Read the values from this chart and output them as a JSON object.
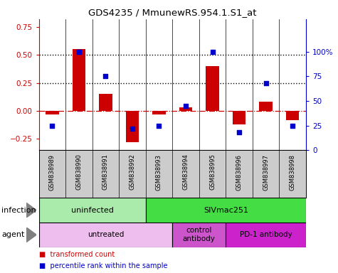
{
  "title": "GDS4235 / MmunewRS.954.1.S1_at",
  "samples": [
    "GSM838989",
    "GSM838990",
    "GSM838991",
    "GSM838992",
    "GSM838993",
    "GSM838994",
    "GSM838995",
    "GSM838996",
    "GSM838997",
    "GSM838998"
  ],
  "transformed_count": [
    -0.03,
    0.55,
    0.15,
    -0.28,
    -0.03,
    0.03,
    0.4,
    -0.12,
    0.08,
    -0.08
  ],
  "percentile_rank": [
    25,
    100,
    75,
    22,
    25,
    45,
    100,
    18,
    68,
    25
  ],
  "bar_color": "#cc0000",
  "dot_color": "#0000cc",
  "ylim_left": [
    -0.35,
    0.82
  ],
  "ylim_right": [
    0,
    133.0
  ],
  "yticks_left": [
    -0.25,
    0.0,
    0.25,
    0.5,
    0.75
  ],
  "yticks_right": [
    0,
    25,
    50,
    75,
    100
  ],
  "infection_groups": [
    {
      "label": "uninfected",
      "start": 0,
      "end": 4,
      "color": "#aaeaaa"
    },
    {
      "label": "SIVmac251",
      "start": 4,
      "end": 10,
      "color": "#44dd44"
    }
  ],
  "agent_groups": [
    {
      "label": "untreated",
      "start": 0,
      "end": 5,
      "color": "#eebfee"
    },
    {
      "label": "control\nantibody",
      "start": 5,
      "end": 7,
      "color": "#cc55cc"
    },
    {
      "label": "PD-1 antibody",
      "start": 7,
      "end": 10,
      "color": "#cc22cc"
    }
  ],
  "infection_label": "infection",
  "agent_label": "agent",
  "legend_items": [
    {
      "color": "#cc0000",
      "label": "transformed count"
    },
    {
      "color": "#0000cc",
      "label": "percentile rank within the sample"
    }
  ],
  "dotted_hlines": [
    0.5,
    0.25
  ],
  "zero_hline_color": "#cc0000",
  "sample_bg_color": "#cccccc",
  "bar_width": 0.5
}
